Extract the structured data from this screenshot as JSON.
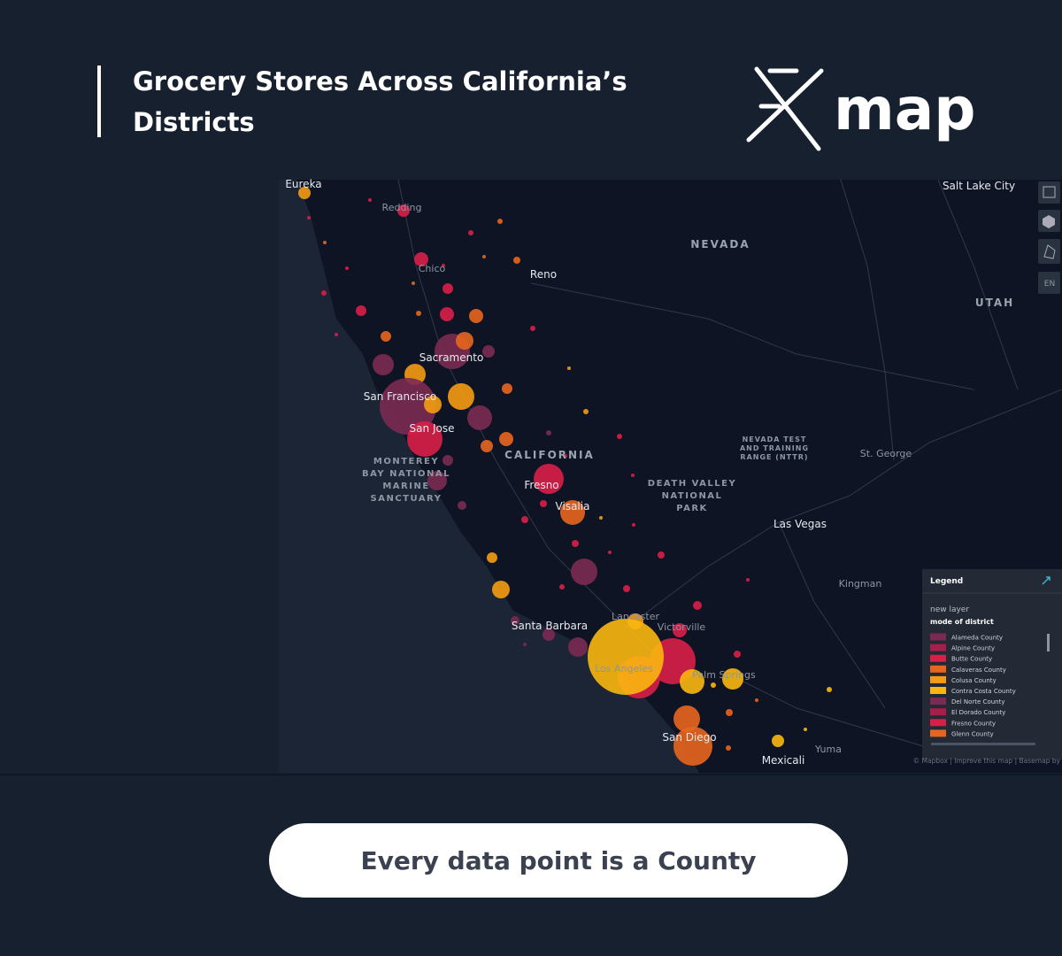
{
  "header": {
    "title_lines": [
      "Grocery Stores Across California’s",
      "Districts"
    ],
    "logo": "map"
  },
  "map": {
    "labels": {
      "eureka": "Eureka",
      "redding": "Redding",
      "chico": "Chico",
      "reno": "Reno",
      "nevada": "NEVADA",
      "utah": "UTAH",
      "salt_lake_city": "Salt Lake City",
      "sacramento": "Sacramento",
      "san_francisco": "San Francisco",
      "san_jose": "San Jose",
      "california": "CALIFORNIA",
      "monterey": [
        "MONTEREY",
        "BAY NATIONAL",
        "MARINE",
        "SANCTUARY"
      ],
      "fresno": "Fresno",
      "visalia": "Visalia",
      "nttr": [
        "NEVADA TEST",
        "AND TRAINING",
        "RANGE (NTTR)"
      ],
      "death_valley": [
        "DEATH VALLEY",
        "NATIONAL",
        "PARK"
      ],
      "st_george": "St. George",
      "las_vegas": "Las Vegas",
      "kingman": "Kingman",
      "lancaster": "Lancaster",
      "victorville": "Victorville",
      "santa_barbara": "Santa Barbara",
      "los_angeles": "Los Angeles",
      "palm_springs": "Palm Springs",
      "san_diego": "San Diego",
      "mexicali": "Mexicali",
      "yuma": "Yuma"
    },
    "language_button": "EN",
    "attribution": "© Mapbox | Improve this map | Basemap by",
    "legend": {
      "title": "Legend",
      "layer": "new layer",
      "field": "mode of district",
      "items": [
        {
          "name": "Alameda County",
          "color": "#7b2a52"
        },
        {
          "name": "Alpine County",
          "color": "#a51f48"
        },
        {
          "name": "Butte County",
          "color": "#d91e48"
        },
        {
          "name": "Calaveras County",
          "color": "#e8651e"
        },
        {
          "name": "Colusa County",
          "color": "#f59c12"
        },
        {
          "name": "Contra Costa County",
          "color": "#fbb70f"
        },
        {
          "name": "Del Norte County",
          "color": "#7b2a52"
        },
        {
          "name": "El Dorado County",
          "color": "#a51f48"
        },
        {
          "name": "Fresno County",
          "color": "#d91e48"
        },
        {
          "name": "Glenn County",
          "color": "#e8651e"
        }
      ]
    }
  },
  "caption": "Every data point is a County"
}
